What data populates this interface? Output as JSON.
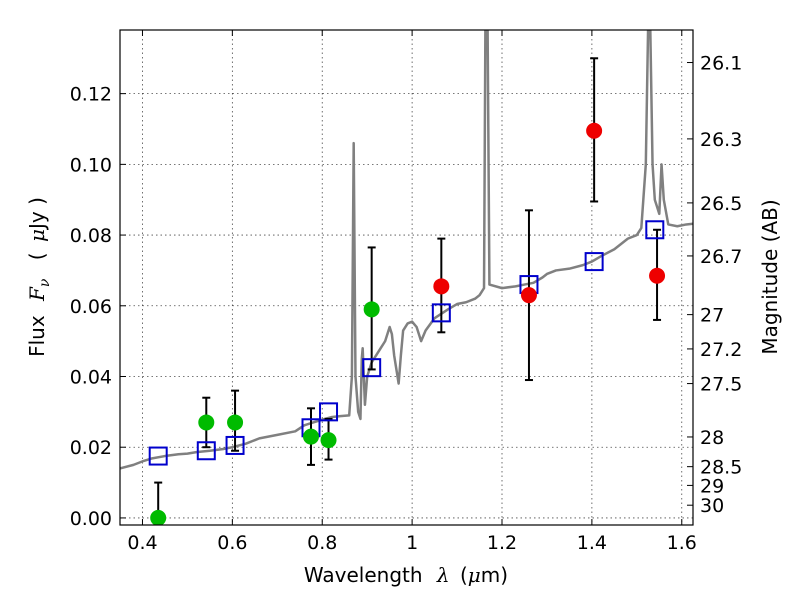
{
  "chart_data": {
    "type": "scatter",
    "title": "",
    "xlabel_text": "Wavelength",
    "xlabel_symbol": "λ",
    "xlabel_units_open": "(",
    "xlabel_units_mu": "μ",
    "xlabel_units_rest": "m)",
    "ylabel_text": "Flux",
    "ylabel_symbol_main": "F",
    "ylabel_symbol_sub": "ν",
    "ylabel_units_open": "(",
    "ylabel_units_mu": "μ",
    "ylabel_units_rest": "Jy )",
    "y2label": "Magnitude (AB)",
    "xlim": [
      0.35,
      1.625
    ],
    "ylim": [
      -0.002,
      0.138
    ],
    "xticks": [
      {
        "value": 0.4,
        "label": "0.4"
      },
      {
        "value": 0.6,
        "label": "0.6"
      },
      {
        "value": 0.8,
        "label": "0.8"
      },
      {
        "value": 1.0,
        "label": "1"
      },
      {
        "value": 1.2,
        "label": "1.2"
      },
      {
        "value": 1.4,
        "label": "1.4"
      },
      {
        "value": 1.6,
        "label": "1.6"
      }
    ],
    "yticks": [
      {
        "value": 0.0,
        "label": "0.00"
      },
      {
        "value": 0.02,
        "label": "0.02"
      },
      {
        "value": 0.04,
        "label": "0.04"
      },
      {
        "value": 0.06,
        "label": "0.06"
      },
      {
        "value": 0.08,
        "label": "0.08"
      },
      {
        "value": 0.1,
        "label": "0.10"
      },
      {
        "value": 0.12,
        "label": "0.12"
      }
    ],
    "y2ticks": [
      {
        "flux": 0.1288,
        "label": "26.1"
      },
      {
        "flux": 0.1072,
        "label": "26.3"
      },
      {
        "flux": 0.0891,
        "label": "26.5"
      },
      {
        "flux": 0.0741,
        "label": "26.7"
      },
      {
        "flux": 0.0575,
        "label": "27"
      },
      {
        "flux": 0.0478,
        "label": "27.2"
      },
      {
        "flux": 0.038,
        "label": "27.5"
      },
      {
        "flux": 0.0229,
        "label": "28"
      },
      {
        "flux": 0.0145,
        "label": "28.5"
      },
      {
        "flux": 0.0092,
        "label": "29"
      },
      {
        "flux": 0.0036,
        "label": "30"
      }
    ],
    "grid": true,
    "series": [
      {
        "name": "model_spectrum",
        "kind": "line",
        "color": "#808080",
        "points": [
          [
            0.35,
            0.014
          ],
          [
            0.38,
            0.015
          ],
          [
            0.4,
            0.016
          ],
          [
            0.42,
            0.0168
          ],
          [
            0.45,
            0.0175
          ],
          [
            0.48,
            0.018
          ],
          [
            0.5,
            0.0182
          ],
          [
            0.52,
            0.0186
          ],
          [
            0.55,
            0.019
          ],
          [
            0.58,
            0.0195
          ],
          [
            0.6,
            0.02
          ],
          [
            0.63,
            0.021
          ],
          [
            0.66,
            0.0225
          ],
          [
            0.7,
            0.0235
          ],
          [
            0.74,
            0.0245
          ],
          [
            0.76,
            0.0262
          ],
          [
            0.78,
            0.027
          ],
          [
            0.8,
            0.0278
          ],
          [
            0.82,
            0.0285
          ],
          [
            0.84,
            0.0288
          ],
          [
            0.86,
            0.029
          ],
          [
            0.866,
            0.04
          ],
          [
            0.87,
            0.106
          ],
          [
            0.874,
            0.04
          ],
          [
            0.88,
            0.03
          ],
          [
            0.885,
            0.028
          ],
          [
            0.888,
            0.045
          ],
          [
            0.89,
            0.048
          ],
          [
            0.895,
            0.032
          ],
          [
            0.9,
            0.04
          ],
          [
            0.91,
            0.044
          ],
          [
            0.92,
            0.046
          ],
          [
            0.93,
            0.048
          ],
          [
            0.94,
            0.05
          ],
          [
            0.95,
            0.054
          ],
          [
            0.955,
            0.052
          ],
          [
            0.96,
            0.046
          ],
          [
            0.965,
            0.042
          ],
          [
            0.97,
            0.038
          ],
          [
            0.975,
            0.046
          ],
          [
            0.98,
            0.053
          ],
          [
            0.99,
            0.055
          ],
          [
            1.0,
            0.0555
          ],
          [
            1.01,
            0.054
          ],
          [
            1.02,
            0.05
          ],
          [
            1.03,
            0.053
          ],
          [
            1.05,
            0.0565
          ],
          [
            1.08,
            0.059
          ],
          [
            1.1,
            0.0605
          ],
          [
            1.12,
            0.061
          ],
          [
            1.14,
            0.062
          ],
          [
            1.15,
            0.063
          ],
          [
            1.16,
            0.065
          ],
          [
            1.163,
            0.138
          ],
          [
            1.168,
            0.138
          ],
          [
            1.172,
            0.066
          ],
          [
            1.2,
            0.065
          ],
          [
            1.23,
            0.0655
          ],
          [
            1.25,
            0.066
          ],
          [
            1.27,
            0.0665
          ],
          [
            1.29,
            0.068
          ],
          [
            1.3,
            0.069
          ],
          [
            1.32,
            0.07
          ],
          [
            1.35,
            0.0705
          ],
          [
            1.38,
            0.0715
          ],
          [
            1.4,
            0.0725
          ],
          [
            1.42,
            0.074
          ],
          [
            1.45,
            0.076
          ],
          [
            1.48,
            0.079
          ],
          [
            1.5,
            0.08
          ],
          [
            1.51,
            0.082
          ],
          [
            1.52,
            0.1
          ],
          [
            1.525,
            0.138
          ],
          [
            1.53,
            0.138
          ],
          [
            1.535,
            0.1
          ],
          [
            1.54,
            0.09
          ],
          [
            1.545,
            0.088
          ],
          [
            1.55,
            0.086
          ],
          [
            1.555,
            0.1
          ],
          [
            1.56,
            0.09
          ],
          [
            1.57,
            0.083
          ],
          [
            1.59,
            0.0825
          ],
          [
            1.61,
            0.083
          ],
          [
            1.625,
            0.0832
          ]
        ]
      },
      {
        "name": "model_photometry",
        "kind": "open_square",
        "color": "#0000cc",
        "points": [
          [
            0.435,
            0.0175
          ],
          [
            0.542,
            0.019
          ],
          [
            0.606,
            0.0205
          ],
          [
            0.775,
            0.0255
          ],
          [
            0.814,
            0.03
          ],
          [
            0.91,
            0.0425
          ],
          [
            1.065,
            0.058
          ],
          [
            1.26,
            0.066
          ],
          [
            1.405,
            0.0725
          ],
          [
            1.54,
            0.0815
          ]
        ]
      },
      {
        "name": "observed_green",
        "kind": "filled_circle",
        "color": "#00bb00",
        "points": [
          {
            "x": 0.435,
            "y": 0.0,
            "yerr_lo": 0.0,
            "yerr_hi": 0.01,
            "upper_limit": true
          },
          {
            "x": 0.542,
            "y": 0.027,
            "yerr_lo": 0.007,
            "yerr_hi": 0.007
          },
          {
            "x": 0.606,
            "y": 0.027,
            "yerr_lo": 0.008,
            "yerr_hi": 0.009
          },
          {
            "x": 0.775,
            "y": 0.023,
            "yerr_lo": 0.008,
            "yerr_hi": 0.008
          },
          {
            "x": 0.814,
            "y": 0.022,
            "yerr_lo": 0.0055,
            "yerr_hi": 0.006
          },
          {
            "x": 0.91,
            "y": 0.059,
            "yerr_lo": 0.017,
            "yerr_hi": 0.0175
          }
        ]
      },
      {
        "name": "observed_red",
        "kind": "filled_circle",
        "color": "#ee0000",
        "points": [
          {
            "x": 1.065,
            "y": 0.0655,
            "yerr_lo": 0.013,
            "yerr_hi": 0.0135
          },
          {
            "x": 1.26,
            "y": 0.063,
            "yerr_lo": 0.024,
            "yerr_hi": 0.024
          },
          {
            "x": 1.405,
            "y": 0.1095,
            "yerr_lo": 0.02,
            "yerr_hi": 0.0205
          },
          {
            "x": 1.545,
            "y": 0.0685,
            "yerr_lo": 0.0125,
            "yerr_hi": 0.013
          }
        ]
      }
    ]
  }
}
